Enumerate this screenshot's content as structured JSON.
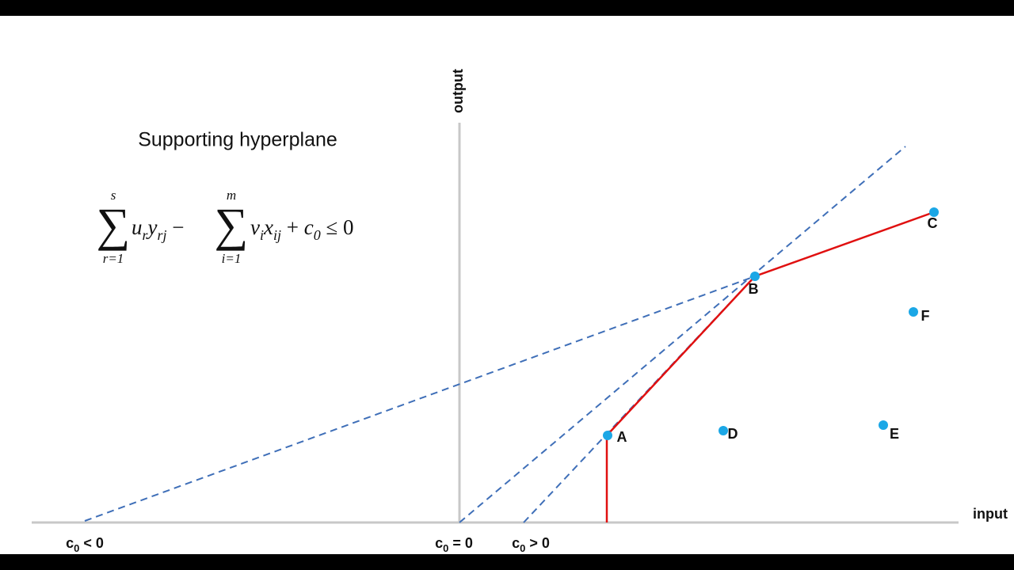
{
  "title": "Supporting hyperplane",
  "formula": {
    "sum1": {
      "symbol": "∑",
      "upper": "s",
      "lower": "r=1"
    },
    "expr1": [
      {
        "text": "u",
        "style": "italic"
      },
      {
        "text": "r",
        "style": "sub"
      },
      {
        "text": "y",
        "style": "italic"
      },
      {
        "text": "rj",
        "style": "sub"
      },
      {
        "text": " − ",
        "style": "normal"
      }
    ],
    "sum2": {
      "symbol": "∑",
      "upper": "m",
      "lower": "i=1"
    },
    "expr2": [
      {
        "text": "v",
        "style": "italic"
      },
      {
        "text": "i",
        "style": "sub"
      },
      {
        "text": "x",
        "style": "italic"
      },
      {
        "text": "ij",
        "style": "sub"
      },
      {
        "text": " + ",
        "style": "normal"
      },
      {
        "text": "c",
        "style": "italic"
      },
      {
        "text": "0",
        "style": "sub"
      },
      {
        "text": " ≤ 0",
        "style": "normal"
      }
    ]
  },
  "axes": {
    "x": "input",
    "y": "output"
  },
  "points": [
    {
      "label": "A"
    },
    {
      "label": "B"
    },
    {
      "label": "C"
    },
    {
      "label": "D"
    },
    {
      "label": "E"
    },
    {
      "label": "F"
    }
  ],
  "intercepts": [
    {
      "main": "c",
      "sub": "0",
      "rest": " < 0"
    },
    {
      "main": "c",
      "sub": "0",
      "rest": " = 0"
    },
    {
      "main": "c",
      "sub": "0",
      "rest": " > 0"
    }
  ]
}
